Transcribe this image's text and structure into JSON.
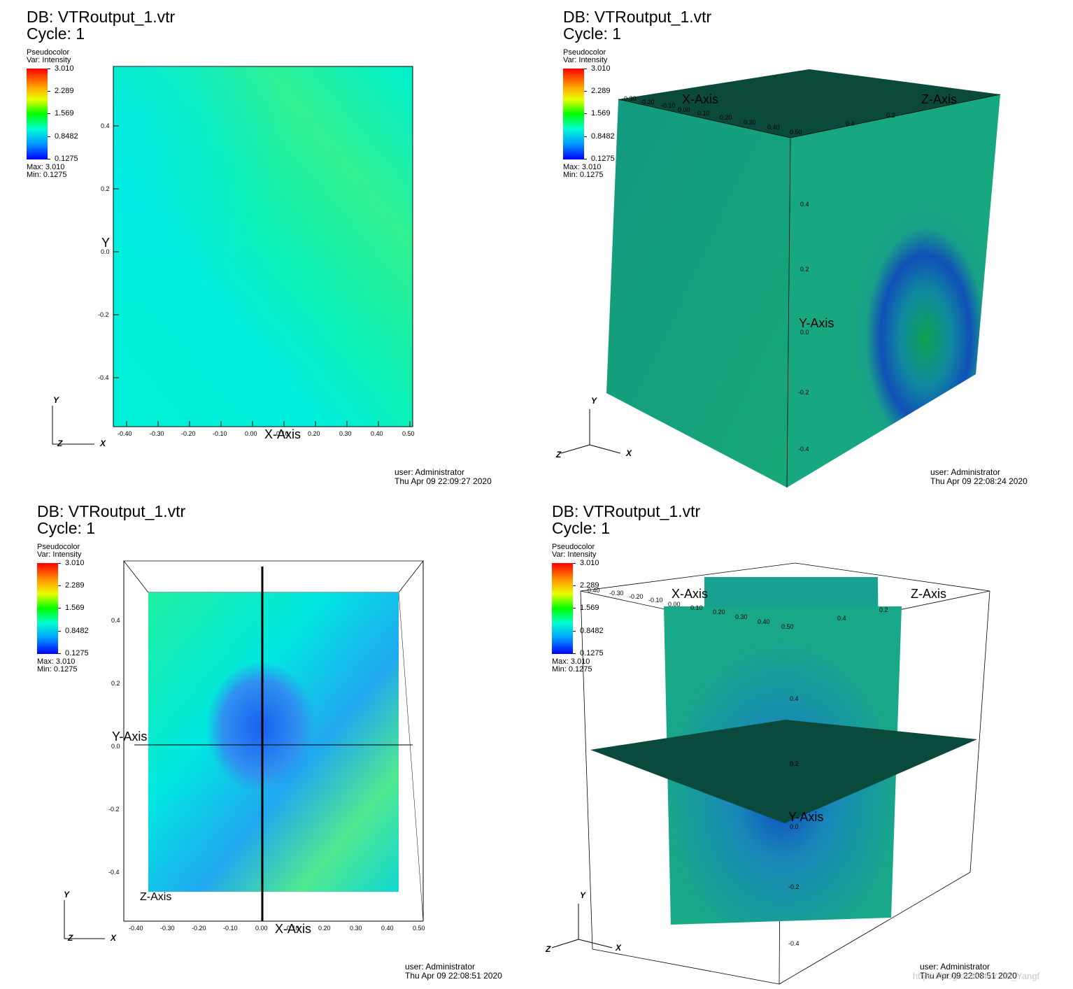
{
  "panels": [
    {
      "db_label": "DB: VTRoutput_1.vtr",
      "cycle_label": "Cycle: 1",
      "legend": {
        "plot": "Pseudocolor",
        "var": "Var: Intensity",
        "ticks": [
          "3.010",
          "2.289",
          "1.569",
          "0.8482",
          "0.1275"
        ],
        "max": "Max:  3.010",
        "min": "Min:  0.1275"
      },
      "user": "user: Administrator",
      "date": "Thu Apr 09 22:09:27 2020",
      "x_title": "X-Axis",
      "y_title": "Y",
      "x_ticks": [
        "-0.40",
        "-0.30",
        "-0.20",
        "-0.10",
        "0.00",
        "0.10",
        "0.20",
        "0.30",
        "0.40",
        "0.50"
      ],
      "y_ticks": [
        "0.4",
        "0.2",
        "0.0",
        "-0.2",
        "-0.4"
      ],
      "triad": {
        "y": "Y",
        "z": "Z",
        "x": "X"
      }
    },
    {
      "db_label": "DB: VTRoutput_1.vtr",
      "cycle_label": "Cycle: 1",
      "legend": {
        "plot": "Pseudocolor",
        "var": "Var: Intensity",
        "ticks": [
          "3.010",
          "2.289",
          "1.569",
          "0.8482",
          "0.1275"
        ],
        "max": "Max:  3.010",
        "min": "Min:  0.1275"
      },
      "user": "user: Administrator",
      "date": "Thu Apr 09 22:08:24 2020",
      "x_title": "X-Axis",
      "y_title": "Y-Axis",
      "z_title": "Z-Axis",
      "x_ticks": [
        "-0.30",
        "-0.20",
        "-0.10",
        "0.00",
        "0.10",
        "0.20",
        "0.30",
        "0.40",
        "0.50"
      ],
      "y_ticks": [
        "0.4",
        "0.2",
        "0.0",
        "-0.2",
        "-0.4"
      ],
      "z_ticks": [
        "0.4",
        "0.2"
      ],
      "triad": {
        "y": "Y",
        "z": "Z",
        "x": "X"
      }
    },
    {
      "db_label": "DB: VTRoutput_1.vtr",
      "cycle_label": "Cycle: 1",
      "legend": {
        "plot": "Pseudocolor",
        "var": "Var: Intensity",
        "ticks": [
          "3.010",
          "2.289",
          "1.569",
          "0.8482",
          "0.1275"
        ],
        "max": "Max:  3.010",
        "min": "Min:  0.1275"
      },
      "user": "user: Administrator",
      "date": "Thu Apr 09 22:08:51 2020",
      "x_title": "X-Axis",
      "y_title": "Y-Axis",
      "z_title": "Z-Axis",
      "x_ticks": [
        "-0.40",
        "-0.30",
        "-0.20",
        "-0.10",
        "0.00",
        "0.10",
        "0.20",
        "0.30",
        "0.40",
        "0.50"
      ],
      "y_ticks": [
        "0.4",
        "0.2",
        "0.0",
        "-0.2",
        "-0.4"
      ],
      "triad": {
        "y": "Y",
        "z": "Z",
        "x": "X"
      }
    },
    {
      "db_label": "DB: VTRoutput_1.vtr",
      "cycle_label": "Cycle: 1",
      "legend": {
        "plot": "Pseudocolor",
        "var": "Var: Intensity",
        "ticks": [
          "3.010",
          "2.289",
          "1.569",
          "0.8482",
          "0.1275"
        ],
        "max": "Max:  3.010",
        "min": "Min:  0.1275"
      },
      "user": "user: Administrator",
      "date": "Thu Apr 09 22:08:51 2020",
      "x_title": "X-Axis",
      "y_title": "Y-Axis",
      "z_title": "Z-Axis",
      "x_ticks": [
        "-0.40",
        "-0.30",
        "-0.20",
        "-0.10",
        "0.00",
        "0.10",
        "0.20",
        "0.30",
        "0.40",
        "0.50"
      ],
      "y_ticks": [
        "0.4",
        "0.2",
        "0.0",
        "-0.2",
        "-0.4"
      ],
      "z_ticks": [
        "0.4",
        "0.2"
      ],
      "triad": {
        "y": "Y",
        "z": "Z",
        "x": "X"
      }
    }
  ],
  "watermark": "https://blog.csdn.net/...O_Yangf"
}
